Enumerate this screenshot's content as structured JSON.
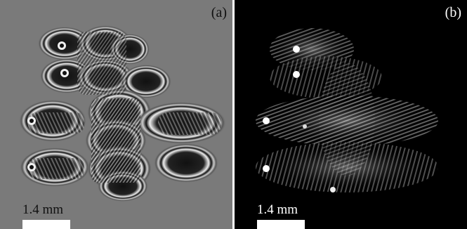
{
  "panels": [
    {
      "label": "(a)",
      "scale_text": "1.4 mm",
      "background": "#7a7a7a"
    },
    {
      "label": "(b)",
      "scale_text": "1.4 mm",
      "background": "#000000"
    }
  ]
}
